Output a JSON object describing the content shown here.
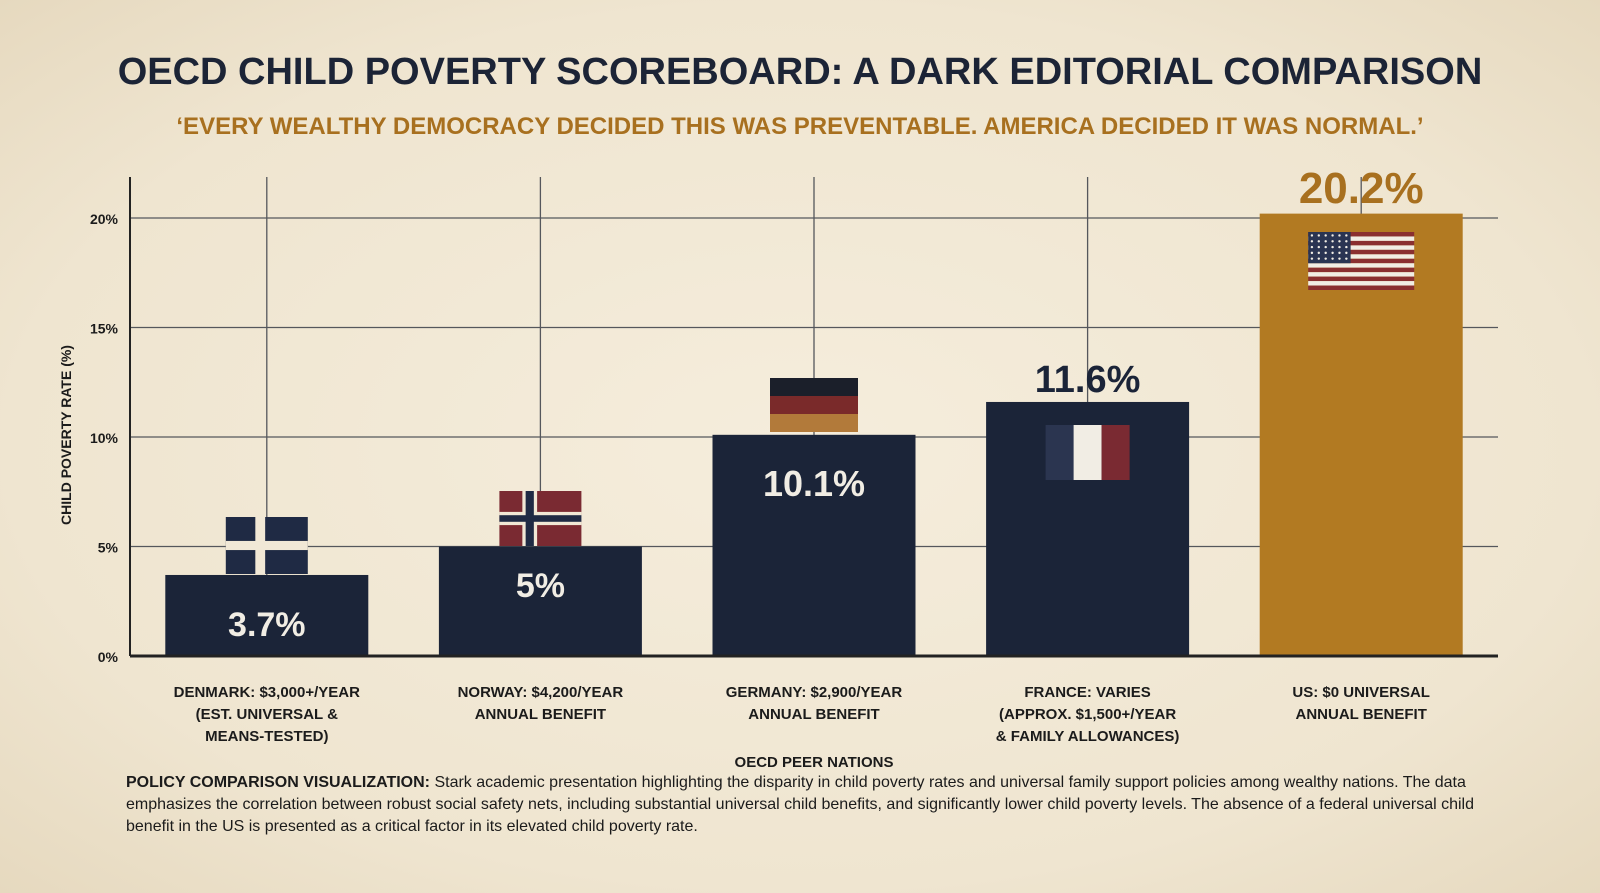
{
  "chart_data": {
    "type": "bar",
    "title": "OECD CHILD POVERTY SCOREBOARD: A DARK EDITORIAL COMPARISON",
    "subtitle": "‘EVERY WEALTHY DEMOCRACY DECIDED THIS WAS PREVENTABLE. AMERICA DECIDED IT WAS NORMAL.’",
    "xlabel": "OECD PEER NATIONS",
    "ylabel": "CHILD POVERTY RATE (%)",
    "ylim": [
      0,
      22
    ],
    "yticks": [
      0,
      5,
      10,
      15,
      20
    ],
    "ytick_labels": [
      "0%",
      "5%",
      "10%",
      "15%",
      "20%"
    ],
    "grid": true,
    "categories": [
      [
        "DENMARK: $3,000+/YEAR",
        "(EST. UNIVERSAL &",
        "MEANS-TESTED)"
      ],
      [
        "NORWAY: $4,200/YEAR",
        "ANNUAL BENEFIT"
      ],
      [
        "GERMANY: $2,900/YEAR",
        "ANNUAL BENEFIT"
      ],
      [
        "FRANCE: VARIES",
        "(APPROX. $1,500+/YEAR",
        "& FAMILY ALLOWANCES)"
      ],
      [
        "US: $0 UNIVERSAL",
        "ANNUAL BENEFIT"
      ]
    ],
    "values": [
      3.7,
      5,
      10.1,
      11.6,
      20.2
    ],
    "data_labels": [
      "3.7%",
      "5%",
      "10.1%",
      "11.6%",
      "20.2%"
    ],
    "flags": [
      "denmark-flag",
      "norway-flag",
      "germany-flag",
      "france-flag",
      "us-flag"
    ],
    "bar_colors": [
      "#1b2438",
      "#1b2438",
      "#1b2438",
      "#1b2438",
      "#b27a22"
    ]
  },
  "footer": {
    "lead": "POLICY COMPARISON VISUALIZATION:",
    "text": " Stark academic presentation highlighting the disparity in child poverty rates and universal family support policies among wealthy nations. The data emphasizes the correlation between robust social safety nets, including substantial universal child benefits, and significantly lower child poverty levels. The absence of a federal universal child benefit in the US is presented as a critical factor in its elevated child poverty rate."
  }
}
